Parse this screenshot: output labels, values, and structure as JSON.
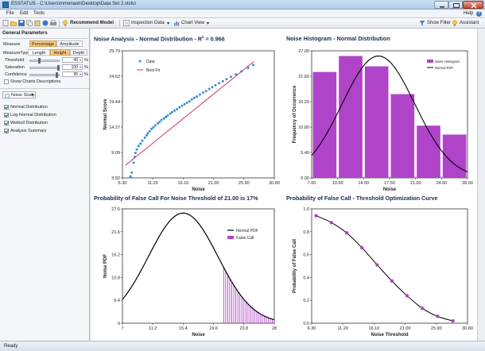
{
  "window": {
    "title": "ESSTATUS - C:\\Users\\mmenash\\Desktop\\Data Set 2.ststu\\"
  },
  "menu": {
    "file": "File",
    "edit": "Edit",
    "tools": "Tools",
    "help": "Help"
  },
  "toolbar": {
    "recommend": "Recommend Model",
    "inspection": "Inspection Data",
    "chartview": "Chart View",
    "showfilter": "Show Filter",
    "assistant": "Assistant"
  },
  "panel": {
    "title": "General Parameters",
    "measure_label": "Measure",
    "tab_percentage": "Percentage",
    "tab_amplitude": "Amplitude",
    "measuretype_label": "MeasureType",
    "mt_length": "Length",
    "mt_height": "Height",
    "mt_depth": "Depth",
    "threshold_label": "Threshold",
    "threshold_value": "40",
    "saturation_label": "Saturation",
    "saturation_value": "100",
    "confidence_label": "Confidence",
    "confidence_value": "95",
    "pct": "%",
    "show_desc": "Show Charts Descriptions",
    "study": "Noise Study",
    "options": [
      {
        "label": "Normal Distribution",
        "checked": true
      },
      {
        "label": "Log-Normal Distribution",
        "checked": true
      },
      {
        "label": "Weibull Distribution",
        "checked": true
      },
      {
        "label": "Analysis Summary",
        "checked": true
      }
    ]
  },
  "charts": {
    "scatter_title": "Noise Analysis - Normal Distribution - R",
    "scatter_title_sup": "2",
    "scatter_title_tail": " = 0.966",
    "scatter_legend_data": "Data",
    "scatter_legend_fit": "Best Fit",
    "scatter_xlabel": "Noise",
    "scatter_ylabel": "Normal Score",
    "hist_title": "Noise Histogram - Normal Distribution",
    "hist_legend_hist": "Noise Histogram",
    "hist_legend_pdf": "Normal PDF",
    "hist_xlabel": "Noise",
    "hist_ylabel": "Frequency of Occurrence",
    "pfc_title": "Probability of False Call For Noise Threshold of 21.00 is 17%",
    "pfc_legend_pdf": "Normal PDF",
    "pfc_legend_fc": "False Call",
    "pfc_xlabel": "Noise",
    "pfc_ylabel": "Noise PDF",
    "opt_title": "Probability of False Call - Threshold Optimization Curve",
    "opt_xlabel": "Noise Threshold",
    "opt_ylabel": "Probability of False Call"
  },
  "status": "Ready",
  "colors": {
    "accent": "#b044c8",
    "scatter": "#3a8fd0",
    "fit": "#d0306a",
    "navy": "#1a2a50"
  },
  "chart_data": [
    {
      "type": "scatter",
      "title": "Noise Analysis - Normal Distribution - R2 = 0.966",
      "xlabel": "Noise",
      "ylabel": "Normal Score",
      "xticks": [
        "6.30",
        "11.20",
        "16.10",
        "21.00",
        "25.90",
        "30.80"
      ],
      "yticks": [
        "3.92",
        "9.09",
        "14.27",
        "19.44",
        "24.62",
        "29.79"
      ],
      "xlim": [
        6.3,
        30.8
      ],
      "ylim": [
        3.92,
        29.79
      ],
      "fit": [
        [
          6.8,
          6.5
        ],
        [
          27.5,
          27.6
        ]
      ],
      "series": [
        {
          "name": "Data",
          "points": [
            [
              7.6,
              4.2
            ],
            [
              7.8,
              5.0
            ],
            [
              8.1,
              7.0
            ],
            [
              8.3,
              8.2
            ],
            [
              8.4,
              9.0
            ],
            [
              8.6,
              9.7
            ],
            [
              8.9,
              10.4
            ],
            [
              9.2,
              10.9
            ],
            [
              9.5,
              11.5
            ],
            [
              9.9,
              12.1
            ],
            [
              10.2,
              12.6
            ],
            [
              10.4,
              13.0
            ],
            [
              10.7,
              13.4
            ],
            [
              11.0,
              13.9
            ],
            [
              11.3,
              14.2
            ],
            [
              11.6,
              14.6
            ],
            [
              12.0,
              15.0
            ],
            [
              12.3,
              15.3
            ],
            [
              12.6,
              15.7
            ],
            [
              13.0,
              16.0
            ],
            [
              13.3,
              16.3
            ],
            [
              13.6,
              16.6
            ],
            [
              14.0,
              17.0
            ],
            [
              14.3,
              17.3
            ],
            [
              14.7,
              17.6
            ],
            [
              15.1,
              17.9
            ],
            [
              15.5,
              18.3
            ],
            [
              15.9,
              18.6
            ],
            [
              16.3,
              18.9
            ],
            [
              16.7,
              19.2
            ],
            [
              17.1,
              19.5
            ],
            [
              17.5,
              19.9
            ],
            [
              17.9,
              20.2
            ],
            [
              18.3,
              20.5
            ],
            [
              18.8,
              20.9
            ],
            [
              19.3,
              21.3
            ],
            [
              19.8,
              21.6
            ],
            [
              20.3,
              22.0
            ],
            [
              20.8,
              22.4
            ],
            [
              21.3,
              22.8
            ],
            [
              21.9,
              23.2
            ],
            [
              22.5,
              23.6
            ],
            [
              23.1,
              24.0
            ],
            [
              23.8,
              24.5
            ],
            [
              24.6,
              25.0
            ],
            [
              25.5,
              25.6
            ],
            [
              26.6,
              26.3
            ],
            [
              27.4,
              26.9
            ]
          ]
        },
        {
          "name": "Best Fit",
          "points": [
            [
              6.8,
              6.5
            ],
            [
              27.5,
              27.6
            ]
          ]
        }
      ]
    },
    {
      "type": "bar",
      "title": "Noise Histogram - Normal Distribution",
      "xlabel": "Noise",
      "ylabel": "Frequency of Occurrence",
      "xticks": [
        "7.00",
        "10.50",
        "14.00",
        "17.50",
        "21.00",
        "24.50",
        "28.00"
      ],
      "yticks": [
        "0.00",
        "5.40",
        "10.80",
        "16.20",
        "21.60",
        "27.00"
      ],
      "xlim": [
        7,
        28
      ],
      "ylim": [
        0,
        27
      ],
      "bins": [
        [
          7.0,
          10.5
        ],
        [
          10.5,
          14.0
        ],
        [
          14.0,
          17.5
        ],
        [
          17.5,
          21.0
        ],
        [
          21.0,
          24.5
        ],
        [
          24.5,
          28.0
        ]
      ],
      "series": [
        {
          "name": "Noise Histogram",
          "values": [
            22.5,
            25.9,
            23.7,
            17.8,
            11.1,
            9.2
          ]
        },
        {
          "name": "Normal PDF",
          "mean": 16.0,
          "sd": 4.9,
          "peak": 25.9
        }
      ]
    },
    {
      "type": "area",
      "title": "Probability of False Call For Noise Threshold of 21.00 is 17%",
      "xlabel": "Noise",
      "ylabel": "Noise PDF",
      "xticks": [
        "7",
        "11.2",
        "15.4",
        "19.6",
        "23.8",
        "28"
      ],
      "yticks": [
        "0",
        "5.4",
        "10.8",
        "16.2",
        "21.6",
        "27.0"
      ],
      "xlim": [
        7,
        28
      ],
      "ylim": [
        0,
        27
      ],
      "threshold": 21.0,
      "series": [
        {
          "name": "Normal PDF",
          "mean": 15.4,
          "sd": 4.8,
          "peak": 26.0
        },
        {
          "name": "False Call",
          "from": 21.0
        }
      ]
    },
    {
      "type": "line",
      "title": "Probability of False Call - Threshold Optimization Curve",
      "xlabel": "Noise Threshold",
      "ylabel": "Probability of False Call",
      "xticks": [
        "6.30",
        "11.20",
        "16.10",
        "21.00",
        "25.90",
        "30.80"
      ],
      "yticks": [
        "0.0",
        "0.2",
        "0.4",
        "0.6",
        "0.8",
        "1.0"
      ],
      "xlim": [
        6.3,
        30.8
      ],
      "ylim": [
        0,
        1
      ],
      "series": [
        {
          "name": "PFC",
          "x": [
            7.0,
            9.4,
            11.8,
            14.2,
            16.6,
            18.9,
            21.3,
            23.7,
            26.1,
            28.5
          ],
          "y": [
            0.94,
            0.88,
            0.79,
            0.66,
            0.51,
            0.37,
            0.24,
            0.13,
            0.06,
            0.02
          ]
        }
      ]
    }
  ]
}
